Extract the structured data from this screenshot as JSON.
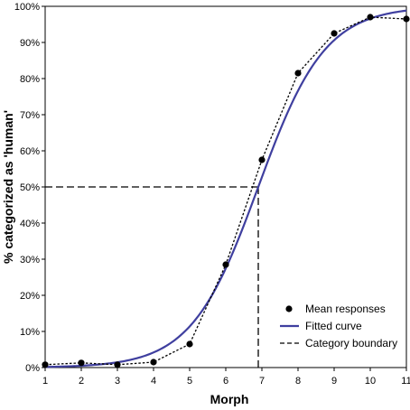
{
  "chart_data": {
    "type": "scatter",
    "xlabel": "Morph",
    "ylabel": "% categorized as 'human'",
    "xlim": [
      1,
      11
    ],
    "ylim": [
      0,
      100
    ],
    "x_ticks": [
      "1",
      "2",
      "3",
      "4",
      "5",
      "6",
      "7",
      "8",
      "9",
      "10",
      "11"
    ],
    "y_ticks": [
      "0%",
      "10%",
      "20%",
      "30%",
      "40%",
      "50%",
      "60%",
      "70%",
      "80%",
      "90%",
      "100%"
    ],
    "grid": false,
    "legend_position": "bottom-right",
    "series": [
      {
        "name": "Mean responses",
        "kind": "points-dotted-line",
        "color": "#000000",
        "x": [
          1,
          2,
          3,
          4,
          5,
          6,
          7,
          8,
          9,
          10,
          11
        ],
        "y": [
          0.8,
          1.3,
          0.8,
          1.5,
          6.5,
          28.5,
          57.5,
          81.5,
          92.5,
          97,
          96.5
        ]
      },
      {
        "name": "Fitted curve",
        "kind": "logistic-curve",
        "color": "#3f3f9f",
        "midpoint": 6.9,
        "slope": 1.08
      },
      {
        "name": "Category boundary",
        "kind": "dashed-crosshair",
        "color": "#000000",
        "x": 6.9,
        "y": 50
      }
    ]
  }
}
